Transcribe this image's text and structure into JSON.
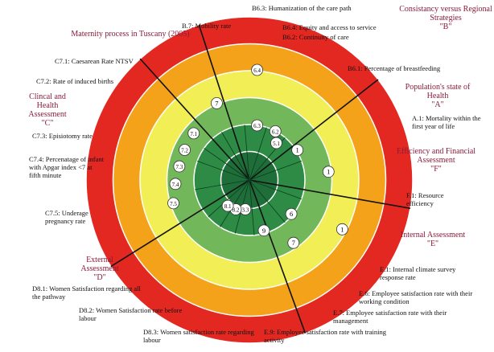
{
  "title": "Maternity process in Tuscany (2005)",
  "colors": {
    "ring1_center": "#1f6e3a",
    "ring2": "#2e8b45",
    "ring3": "#72b85b",
    "ring4_yellow": "#f2ee55",
    "ring5_orange": "#f3a21a",
    "ring6_red": "#e32822"
  },
  "sections": {
    "B": {
      "title": "Consistancy versus Regional Strategies",
      "letter": "\"B\""
    },
    "A": {
      "title": "Population's state of Health",
      "letter": "\"A\""
    },
    "F": {
      "title": "Efficiency and Financial Assessment",
      "letter": "\"F\""
    },
    "E": {
      "title": "Internal Assessment",
      "letter": "\"E\""
    },
    "D": {
      "title": "External Assessment",
      "letter": "\"D\""
    },
    "C": {
      "title": "Clincal and Health Assessment",
      "letter": "\"C\""
    }
  },
  "indicators": {
    "b7": "B.7: Mobility rate",
    "b63": "B6.3: Humanization of the care path",
    "b64": "B6.4: Equity and access to service",
    "b62": "B6.2: Continuity of care",
    "b61": "B6.1: Percentage of breastfeeding",
    "a1": "A.1: Mortality within the first year of life",
    "f1": "F.1: Resource efficiency",
    "e1": "E.1: Internal climate survey response rate",
    "e6": "E.6: Employee satisfaction rate with their working condition",
    "e7": "E.7: Employee satisfaction rate with their management",
    "e9": "E.9: Employee satisfaction rate with training activity",
    "d83": "D8.3: Women satisfaction rate regarding labour",
    "d82": "D8.2: Women Satisfaction rate before labour",
    "d81": "D8.1: Women Satisfaction regarding all the pathway",
    "c75": "C7.5: Underage pregnancy rate",
    "c74": "C7.4: Percenatage of infant with Apgar index <7 at fifth minute",
    "c73": "C7.3: Episiotomy rate",
    "c72": "C7.2: Rate of induced births",
    "c71": "C7.1: Caesarean Rate NTSV"
  },
  "markers": [
    {
      "label": "6.4",
      "angle": 4,
      "level": 4.1
    },
    {
      "label": "6.3",
      "angle": 8,
      "level": 2.05
    },
    {
      "label": "6.2",
      "angle": 28,
      "level": 2.05
    },
    {
      "label": "5.1",
      "angle": 36,
      "level": 1.7
    },
    {
      "label": "1",
      "angle": 58,
      "level": 2.1
    },
    {
      "label": "1",
      "angle": 84,
      "level": 2.95
    },
    {
      "label": "1",
      "angle": 118,
      "level": 3.9
    },
    {
      "label": "6",
      "angle": 129,
      "level": 2.0
    },
    {
      "label": "7",
      "angle": 145,
      "level": 2.85
    },
    {
      "label": "9",
      "angle": 164,
      "level": 1.95
    },
    {
      "label": "3.3",
      "angle": 188,
      "level": 1.1
    },
    {
      "label": "8.2",
      "angle": 205,
      "level": 1.2
    },
    {
      "label": "8.1",
      "angle": 220,
      "level": 1.25
    },
    {
      "label": "7.5",
      "angle": 253,
      "level": 2.95
    },
    {
      "label": "7.4",
      "angle": 267,
      "level": 2.75
    },
    {
      "label": "7.3",
      "angle": 281,
      "level": 2.65
    },
    {
      "label": "7.2",
      "angle": 295,
      "level": 2.65
    },
    {
      "label": "7.1",
      "angle": 310,
      "level": 2.7
    },
    {
      "label": "7",
      "angle": 337,
      "level": 3.1
    }
  ]
}
